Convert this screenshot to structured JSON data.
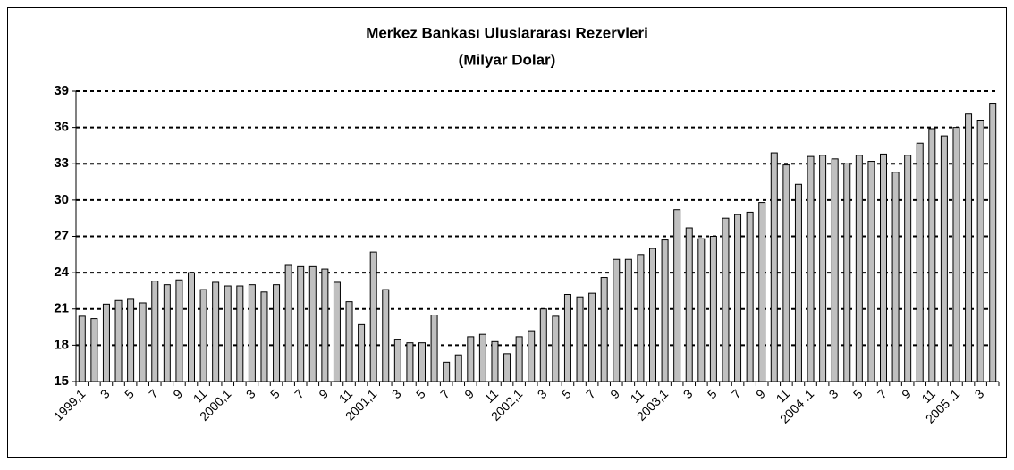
{
  "chart_data": {
    "type": "bar",
    "title": "Merkez Bankası Uluslararası Rezervleri",
    "subtitle": "(Milyar Dolar)",
    "categories": [
      "1999,1",
      null,
      "3",
      null,
      "5",
      null,
      "7",
      null,
      "9",
      null,
      "11",
      null,
      "2000,1",
      null,
      "3",
      null,
      "5",
      null,
      "7",
      null,
      "9",
      null,
      "11",
      null,
      "2001,1",
      null,
      "3",
      null,
      "5",
      null,
      "7",
      null,
      "9",
      null,
      "11",
      null,
      "2002,1",
      null,
      "3",
      null,
      "5",
      null,
      "7",
      null,
      "9",
      null,
      "11",
      null,
      "2003,1",
      null,
      "3",
      null,
      "5",
      null,
      "7",
      null,
      "9",
      null,
      "11",
      null,
      "2004 .1",
      null,
      "3",
      null,
      "5",
      null,
      "7",
      null,
      "9",
      null,
      "11",
      null,
      "2005 .1",
      null,
      "3",
      null
    ],
    "values": [
      20.4,
      20.2,
      21.4,
      21.7,
      21.8,
      21.5,
      23.3,
      23.0,
      23.4,
      24.0,
      22.6,
      23.2,
      22.9,
      22.9,
      23.0,
      22.4,
      23.0,
      24.6,
      24.5,
      24.5,
      24.3,
      23.2,
      21.6,
      19.7,
      25.7,
      22.6,
      18.5,
      18.2,
      18.2,
      20.5,
      16.6,
      17.2,
      18.7,
      18.9,
      18.3,
      17.3,
      18.7,
      19.2,
      21.0,
      20.4,
      22.2,
      22.0,
      22.3,
      23.6,
      25.1,
      25.1,
      25.5,
      26.0,
      26.7,
      29.2,
      27.7,
      26.8,
      27.0,
      28.5,
      28.8,
      29.0,
      29.8,
      33.9,
      32.9,
      31.3,
      33.6,
      33.7,
      33.4,
      33.0,
      33.7,
      33.2,
      33.8,
      32.3,
      33.7,
      34.7,
      35.9,
      35.3,
      36.0,
      37.1,
      36.6,
      38.0
    ],
    "color": "#c0c0c0",
    "ylim": [
      15,
      39
    ],
    "yticks": [
      15,
      18,
      21,
      24,
      27,
      30,
      33,
      36,
      39
    ],
    "grid": true
  }
}
